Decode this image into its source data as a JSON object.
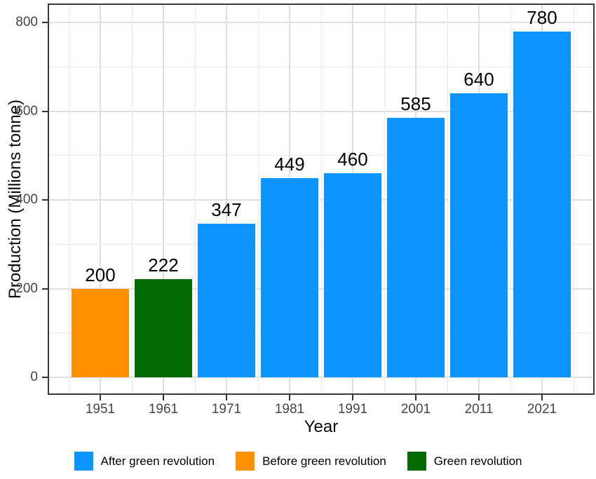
{
  "chart_data": {
    "type": "bar",
    "title": "",
    "xlabel": "Year",
    "ylabel": "Production (Millions tonne)",
    "categories": [
      "1951",
      "1961",
      "1971",
      "1981",
      "1991",
      "2001",
      "2011",
      "2021"
    ],
    "values": [
      200,
      222,
      347,
      449,
      460,
      585,
      640,
      780
    ],
    "bar_groups": [
      "Before green revolution",
      "Green revolution",
      "After green revolution",
      "After green revolution",
      "After green revolution",
      "After green revolution",
      "After green revolution",
      "After green revolution"
    ],
    "value_labels": [
      "200",
      "222",
      "347",
      "449",
      "460",
      "585",
      "640",
      "780"
    ],
    "yticks": [
      0,
      200,
      400,
      600,
      800
    ],
    "ytick_labels": [
      "0",
      "200",
      "400",
      "600",
      "800"
    ],
    "ylim": [
      0,
      840
    ],
    "grid": "major and minor, light gray, horizontal every 100 and vertical at category centers and midpoints",
    "legend_position": "bottom",
    "legend": [
      {
        "label": "After green revolution",
        "color": "#0d95ff"
      },
      {
        "label": "Before green revolution",
        "color": "#ff9100"
      },
      {
        "label": "Green revolution",
        "color": "#046b04"
      }
    ],
    "colors": {
      "after_green_revolution": "#0d95ff",
      "before_green_revolution": "#ff9100",
      "green_revolution": "#046b04",
      "panel_border": "#3a3a3a",
      "grid_major": "#dfdfdf",
      "grid_minor": "#ebebeb",
      "tick_text": "#454545",
      "value_text": "#000000"
    }
  }
}
